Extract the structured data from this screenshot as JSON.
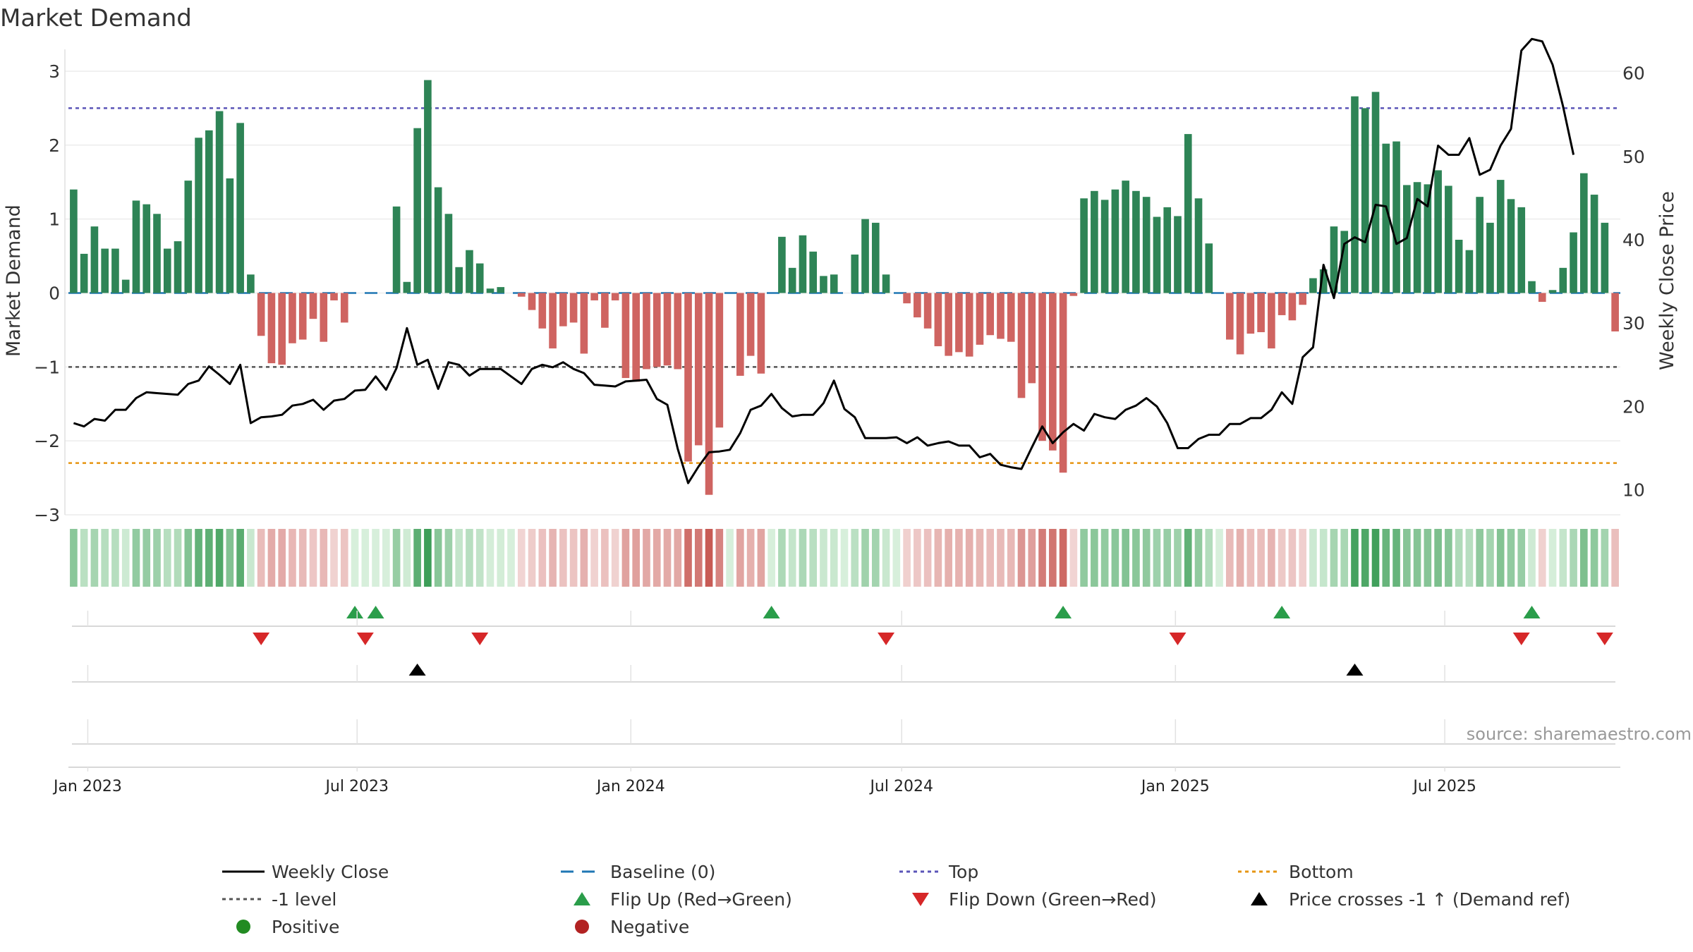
{
  "chart_data": {
    "type": "bar",
    "title": "Market Demand",
    "ylabel": "Market Demand",
    "y2label": "Weekly Close Price",
    "ylim": [
      -3.0,
      3.2
    ],
    "y2lim": [
      7,
      62
    ],
    "yticks": [
      "−3",
      "−2",
      "−1",
      "0",
      "1",
      "2",
      "3"
    ],
    "y2ticks": [
      "10",
      "20",
      "30",
      "40",
      "50",
      "60"
    ],
    "xticks": [
      "Jan 2023",
      "Jul 2023",
      "Jan 2024",
      "Jul 2024",
      "Jan 2025",
      "Jul 2025"
    ],
    "levels": {
      "top": 2.5,
      "minus_one": -1.0,
      "bottom": -2.3,
      "baseline": 0
    },
    "source": "source: sharemaestro.com",
    "legend": [
      {
        "label": "Weekly Close",
        "symbol": "line"
      },
      {
        "label": "Baseline (0)",
        "symbol": "dash"
      },
      {
        "label": "Top",
        "symbol": "dotted"
      },
      {
        "label": "Bottom",
        "symbol": "dotted"
      },
      {
        "label": "-1 level",
        "symbol": "dotted"
      },
      {
        "label": "Flip Up (Red→Green)",
        "symbol": "triangle-up"
      },
      {
        "label": "Flip Down (Green→Red)",
        "symbol": "triangle-down"
      },
      {
        "label": "Price crosses -1 ↑ (Demand ref)",
        "symbol": "triangle-up"
      },
      {
        "label": "Positive",
        "symbol": "dot"
      },
      {
        "label": "Negative",
        "symbol": "dot"
      }
    ],
    "week_start": "2022-12-19",
    "demand": [
      1.4,
      0.53,
      0.9,
      0.6,
      0.6,
      0.18,
      1.25,
      1.2,
      1.07,
      0.6,
      0.7,
      1.52,
      2.1,
      2.2,
      2.46,
      1.55,
      2.3,
      0.25,
      -0.58,
      -0.95,
      -0.97,
      -0.68,
      -0.63,
      -0.35,
      -0.66,
      -0.1,
      -0.4,
      0,
      0,
      0,
      0,
      1.17,
      0.15,
      2.23,
      2.88,
      1.43,
      1.07,
      0.35,
      0.58,
      0.4,
      0.06,
      0.08,
      0,
      -0.05,
      -0.23,
      -0.48,
      -0.75,
      -0.45,
      -0.4,
      -0.82,
      -0.1,
      -0.47,
      -0.1,
      -1.15,
      -1.2,
      -1.03,
      -1.0,
      -0.98,
      -1.03,
      -2.28,
      -2.06,
      -2.73,
      -1.82,
      0,
      -1.12,
      -0.85,
      -1.09,
      0,
      0.76,
      0.34,
      0.78,
      0.56,
      0.23,
      0.25,
      0,
      0.52,
      1.0,
      0.95,
      0.25,
      0,
      -0.14,
      -0.33,
      -0.48,
      -0.72,
      -0.85,
      -0.8,
      -0.86,
      -0.7,
      -0.57,
      -0.62,
      -0.66,
      -1.42,
      -1.22,
      -2.0,
      -2.13,
      -2.43,
      -0.04,
      1.28,
      1.38,
      1.26,
      1.4,
      1.52,
      1.38,
      1.3,
      1.03,
      1.16,
      1.04,
      2.15,
      1.28,
      0.67,
      0,
      -0.63,
      -0.83,
      -0.55,
      -0.53,
      -0.75,
      -0.3,
      -0.37,
      -0.16,
      0.2,
      0.32,
      0.9,
      0.84,
      2.66,
      2.5,
      2.72,
      2.02,
      2.05,
      1.46,
      1.5,
      1.47,
      1.66,
      1.45,
      0.72,
      0.58,
      1.3,
      0.95,
      1.53,
      1.27,
      1.16,
      0.16,
      -0.12,
      0.04,
      0.34,
      0.82,
      1.62,
      1.33,
      0.95,
      -0.52
    ],
    "close": [
      18.0,
      17.6,
      18.5,
      18.3,
      19.6,
      19.6,
      21.0,
      21.7,
      21.6,
      21.5,
      21.4,
      22.7,
      23.1,
      24.8,
      23.8,
      22.7,
      25.0,
      18.0,
      18.7,
      18.8,
      19.0,
      20.1,
      20.3,
      20.8,
      19.6,
      20.7,
      20.9,
      21.9,
      22.0,
      23.6,
      22.0,
      24.6,
      29.4,
      25.0,
      25.6,
      22.1,
      25.3,
      25.0,
      23.7,
      24.5,
      24.5,
      24.5,
      23.6,
      22.7,
      24.5,
      25.0,
      24.7,
      25.3,
      24.5,
      24.0,
      22.6,
      22.5,
      22.4,
      23.0,
      23.1,
      23.2,
      20.9,
      20.2,
      14.9,
      10.8,
      12.8,
      14.5,
      14.6,
      14.8,
      16.8,
      19.6,
      20.1,
      21.5,
      19.8,
      18.8,
      19.0,
      19.0,
      20.4,
      23.1,
      19.7,
      18.7,
      16.2,
      16.2,
      16.2,
      16.3,
      15.6,
      16.3,
      15.3,
      15.6,
      15.8,
      15.3,
      15.3,
      13.9,
      14.3,
      13.0,
      12.7,
      12.5,
      15.1,
      17.6,
      15.6,
      16.9,
      17.9,
      17.1,
      19.1,
      18.7,
      18.5,
      19.6,
      20.1,
      21.0,
      20.0,
      18.0,
      15.0,
      15.0,
      16.1,
      16.6,
      16.6,
      17.9,
      17.9,
      18.6,
      18.6,
      19.6,
      21.7,
      20.3,
      25.9,
      27.1,
      37.0,
      33.0,
      39.5,
      40.3,
      39.7,
      44.2,
      44.0,
      39.5,
      40.2,
      44.9,
      44.0,
      51.3,
      50.2,
      50.2,
      52.2,
      47.8,
      48.4,
      51.3,
      53.3,
      62.7,
      64.1,
      63.8,
      61.0,
      56.0,
      50.2
    ],
    "flip_up": [
      "2023-06-26",
      "2023-07-10",
      "2024-04-01",
      "2024-10-14",
      "2025-03-10",
      "2025-08-25"
    ],
    "flip_down": [
      "2023-04-24",
      "2023-07-03",
      "2023-09-18",
      "2024-06-17",
      "2024-12-30",
      "2025-08-18",
      "2025-10-13"
    ],
    "price_cross": [
      "2023-08-07",
      "2025-04-28"
    ]
  }
}
